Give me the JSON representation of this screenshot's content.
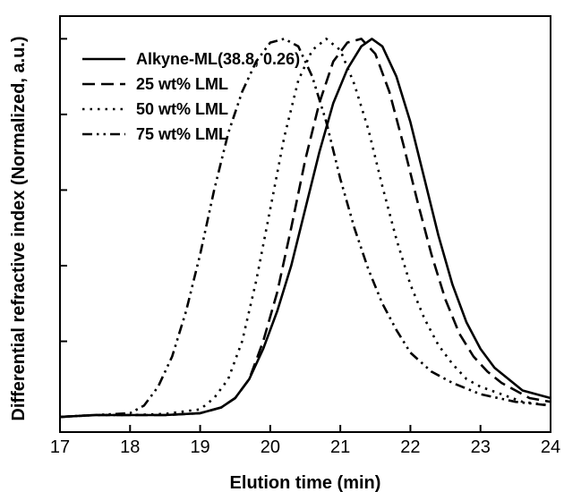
{
  "chart_data": {
    "type": "line",
    "title": "",
    "xlabel": "Elution time (min)",
    "ylabel": "Differential refractive index (Normalized, a.u.)",
    "xlim": [
      17,
      24
    ],
    "ylim": [
      -0.04,
      1.06
    ],
    "xticks": [
      17,
      18,
      19,
      20,
      21,
      22,
      23,
      24
    ],
    "yticks": [
      0,
      0.2,
      0.4,
      0.6,
      0.8,
      1.0
    ],
    "show_y_tick_labels": false,
    "grid": false,
    "legend": "top-left",
    "series": [
      {
        "name": "Alkyne-ML(38.8, 0.26)",
        "style": "solid",
        "color": "#000000",
        "x": [
          17.0,
          17.5,
          18.0,
          18.5,
          19.0,
          19.3,
          19.5,
          19.7,
          19.9,
          20.1,
          20.3,
          20.5,
          20.7,
          20.9,
          21.1,
          21.3,
          21.45,
          21.6,
          21.8,
          22.0,
          22.2,
          22.4,
          22.6,
          22.8,
          23.0,
          23.2,
          23.4,
          23.6,
          23.8,
          24.0
        ],
        "y": [
          0.0,
          0.005,
          0.005,
          0.005,
          0.01,
          0.025,
          0.05,
          0.1,
          0.18,
          0.28,
          0.4,
          0.55,
          0.7,
          0.83,
          0.92,
          0.98,
          1.0,
          0.98,
          0.9,
          0.78,
          0.63,
          0.48,
          0.35,
          0.25,
          0.18,
          0.13,
          0.1,
          0.07,
          0.06,
          0.05
        ]
      },
      {
        "name": "25 wt% LML",
        "style": "dashed",
        "color": "#000000",
        "x": [
          17.0,
          17.5,
          18.0,
          18.5,
          19.0,
          19.3,
          19.5,
          19.7,
          19.9,
          20.1,
          20.3,
          20.5,
          20.7,
          20.9,
          21.1,
          21.3,
          21.5,
          21.7,
          21.9,
          22.1,
          22.3,
          22.5,
          22.7,
          22.9,
          23.1,
          23.3,
          23.5,
          23.7,
          24.0
        ],
        "y": [
          0.0,
          0.005,
          0.005,
          0.005,
          0.01,
          0.025,
          0.05,
          0.1,
          0.2,
          0.33,
          0.5,
          0.68,
          0.83,
          0.94,
          0.99,
          1.0,
          0.96,
          0.86,
          0.72,
          0.57,
          0.43,
          0.31,
          0.22,
          0.16,
          0.12,
          0.09,
          0.07,
          0.05,
          0.04
        ]
      },
      {
        "name": "50 wt% LML",
        "style": "dotted",
        "color": "#000000",
        "x": [
          17.0,
          17.5,
          18.0,
          18.5,
          19.0,
          19.2,
          19.4,
          19.6,
          19.8,
          20.0,
          20.2,
          20.4,
          20.6,
          20.8,
          21.0,
          21.2,
          21.4,
          21.6,
          21.8,
          22.0,
          22.2,
          22.4,
          22.6,
          22.8,
          23.0,
          23.3,
          23.6,
          24.0
        ],
        "y": [
          0.0,
          0.005,
          0.005,
          0.008,
          0.02,
          0.05,
          0.1,
          0.2,
          0.36,
          0.55,
          0.74,
          0.89,
          0.97,
          1.0,
          0.97,
          0.88,
          0.76,
          0.61,
          0.47,
          0.35,
          0.26,
          0.19,
          0.14,
          0.1,
          0.08,
          0.06,
          0.04,
          0.03
        ]
      },
      {
        "name": "75 wt% LML",
        "style": "dashdotdot",
        "color": "#000000",
        "x": [
          17.0,
          17.5,
          18.0,
          18.2,
          18.4,
          18.6,
          18.8,
          19.0,
          19.2,
          19.4,
          19.6,
          19.8,
          20.0,
          20.2,
          20.4,
          20.6,
          20.8,
          21.0,
          21.2,
          21.4,
          21.6,
          21.8,
          22.0,
          22.3,
          22.6,
          23.0,
          23.5,
          24.0
        ],
        "y": [
          0.0,
          0.005,
          0.01,
          0.03,
          0.08,
          0.16,
          0.28,
          0.43,
          0.6,
          0.75,
          0.86,
          0.94,
          0.99,
          1.0,
          0.98,
          0.9,
          0.78,
          0.63,
          0.5,
          0.39,
          0.3,
          0.23,
          0.17,
          0.12,
          0.09,
          0.06,
          0.04,
          0.03
        ]
      }
    ]
  }
}
